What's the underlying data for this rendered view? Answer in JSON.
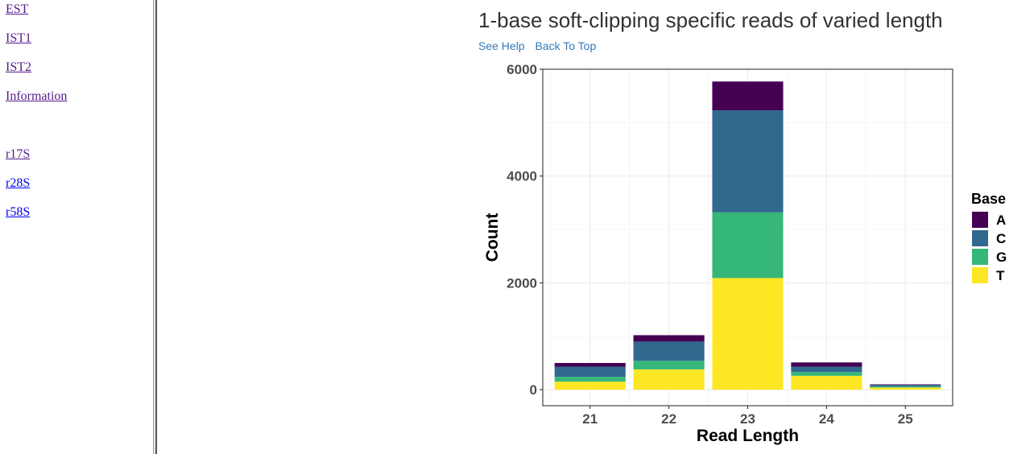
{
  "sidebar": {
    "links": [
      {
        "label": "EST ",
        "state": "visited"
      },
      {
        "label": "IST1 ",
        "state": "visited"
      },
      {
        "label": "IST2 ",
        "state": "visited"
      },
      {
        "label": "Information ",
        "state": "visited"
      },
      {
        "label": "r17S ",
        "state": "visited"
      },
      {
        "label": "r28S ",
        "state": "unvisited"
      },
      {
        "label": "r58S ",
        "state": "unvisited"
      }
    ]
  },
  "header": {
    "title": "1-base soft-clipping specific reads of varied length",
    "see_help": "See Help",
    "back_to_top": "Back To Top"
  },
  "colors": {
    "link_visited": "#551a8b",
    "link_unvisited": "#0000ee",
    "help_link": "#337ab7"
  },
  "chart_data": {
    "type": "bar",
    "stacked": true,
    "categories": [
      "21",
      "22",
      "23",
      "24",
      "25"
    ],
    "series": [
      {
        "name": "T",
        "color": "#fde725",
        "values": [
          150,
          380,
          2090,
          260,
          40
        ]
      },
      {
        "name": "G",
        "color": "#35b779",
        "values": [
          90,
          160,
          1230,
          70,
          20
        ]
      },
      {
        "name": "C",
        "color": "#31688e",
        "values": [
          190,
          360,
          1910,
          100,
          30
        ]
      },
      {
        "name": "A",
        "color": "#440154",
        "values": [
          70,
          120,
          540,
          80,
          10
        ]
      }
    ],
    "xlabel": "Read Length",
    "ylabel": "Count",
    "ylim": [
      -300,
      6000
    ],
    "yticks": [
      0,
      2000,
      4000,
      6000
    ],
    "legend_title": "Base",
    "legend_items": [
      "A",
      "C",
      "G",
      "T"
    ],
    "legend_position": "right",
    "grid": true
  }
}
